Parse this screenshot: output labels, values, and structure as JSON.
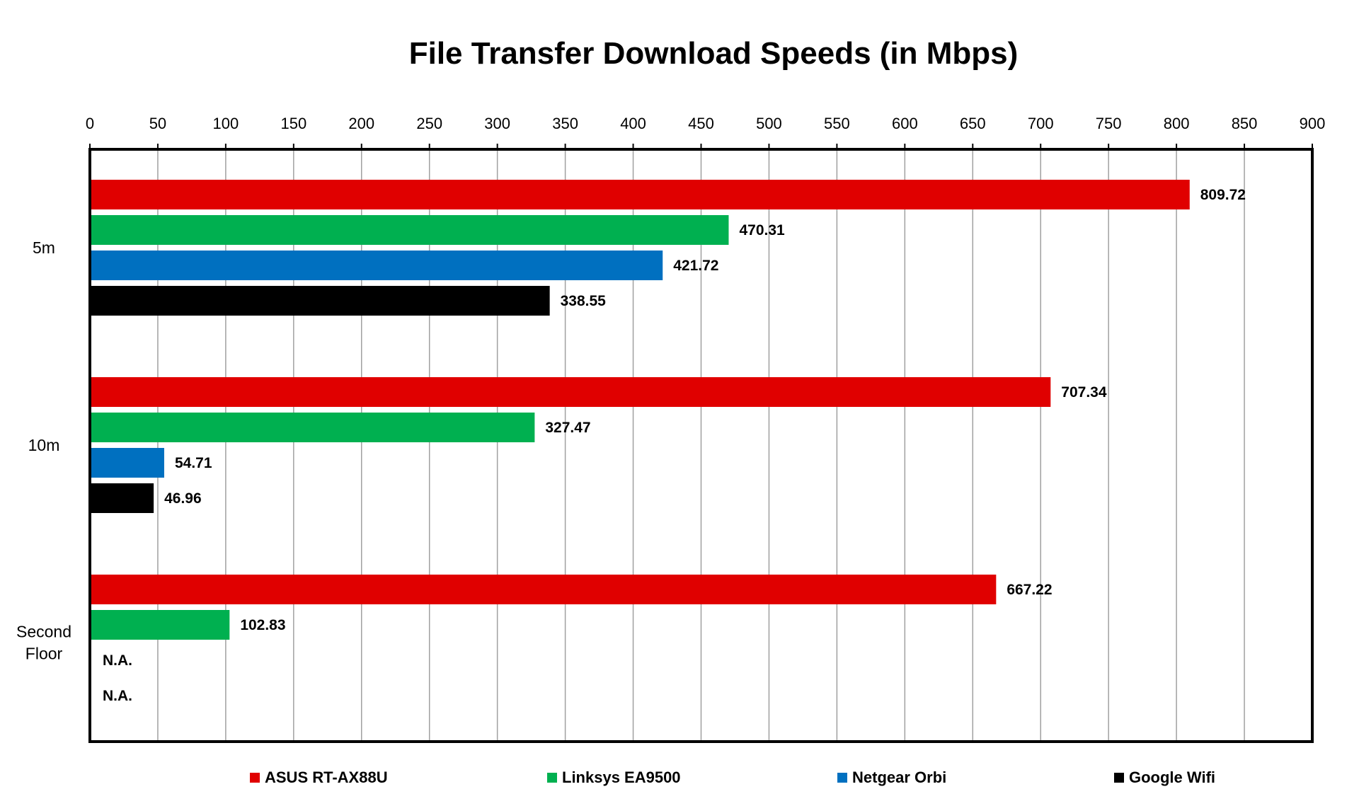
{
  "chart_data": {
    "type": "bar",
    "orientation": "horizontal",
    "title": "File Transfer Download Speeds (in Mbps)",
    "xlim": [
      0,
      900
    ],
    "x_ticks": [
      "0",
      "50",
      "100",
      "150",
      "200",
      "250",
      "300",
      "350",
      "400",
      "450",
      "500",
      "550",
      "600",
      "650",
      "700",
      "750",
      "800",
      "850",
      "900"
    ],
    "x_tick_values": [
      0,
      50,
      100,
      150,
      200,
      250,
      300,
      350,
      400,
      450,
      500,
      550,
      600,
      650,
      700,
      750,
      800,
      850,
      900
    ],
    "x_axis_position": "top",
    "grid": "vertical",
    "legend_position": "bottom",
    "categories": [
      {
        "lines": [
          "5m"
        ]
      },
      {
        "lines": [
          "10m"
        ]
      },
      {
        "lines": [
          "Second",
          "Floor"
        ]
      }
    ],
    "series": [
      {
        "name": "ASUS RT-AX88U",
        "color": "#e00000",
        "values": [
          809.72,
          707.34,
          667.22
        ],
        "labels": [
          "809.72",
          "707.34",
          "667.22"
        ]
      },
      {
        "name": "Linksys EA9500",
        "color": "#00b050",
        "values": [
          470.31,
          327.47,
          102.83
        ],
        "labels": [
          "470.31",
          "327.47",
          "102.83"
        ]
      },
      {
        "name": "Netgear Orbi",
        "color": "#0070c0",
        "values": [
          421.72,
          54.71,
          null
        ],
        "labels": [
          "421.72",
          "54.71",
          "N.A."
        ]
      },
      {
        "name": "Google Wifi",
        "color": "#000000",
        "values": [
          338.55,
          46.96,
          null
        ],
        "labels": [
          "338.55",
          "46.96",
          "N.A."
        ]
      }
    ]
  }
}
